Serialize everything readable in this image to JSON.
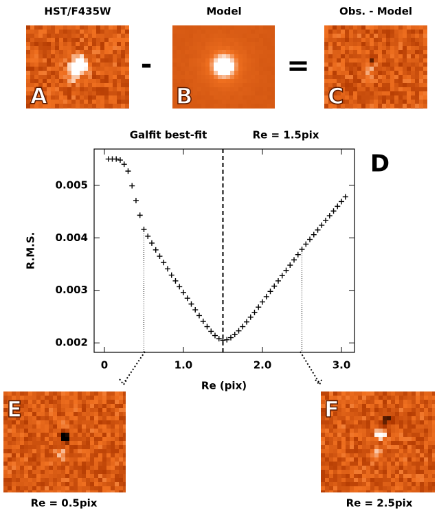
{
  "chart_data": {
    "type": "scatter",
    "title": "Galfit best-fit",
    "annotation": "Re = 1.5pix",
    "panel_letter": "D",
    "x_label": "Re (pix)",
    "y_label": "R.M.S.",
    "x": [
      0.05,
      0.1,
      0.15,
      0.2,
      0.25,
      0.3,
      0.35,
      0.4,
      0.45,
      0.5,
      0.55,
      0.6,
      0.65,
      0.7,
      0.75,
      0.8,
      0.85,
      0.9,
      0.95,
      1.0,
      1.05,
      1.1,
      1.15,
      1.2,
      1.25,
      1.3,
      1.35,
      1.4,
      1.45,
      1.5,
      1.55,
      1.6,
      1.65,
      1.7,
      1.75,
      1.8,
      1.85,
      1.9,
      1.95,
      2.0,
      2.05,
      2.1,
      2.15,
      2.2,
      2.25,
      2.3,
      2.35,
      2.4,
      2.45,
      2.5,
      2.55,
      2.6,
      2.65,
      2.7,
      2.75,
      2.8,
      2.85,
      2.9,
      2.95,
      3.0,
      3.05
    ],
    "values": [
      0.0055,
      0.0055,
      0.0055,
      0.00548,
      0.0054,
      0.00527,
      0.00499,
      0.00471,
      0.00443,
      0.00416,
      0.00403,
      0.0039,
      0.00377,
      0.00365,
      0.00353,
      0.00341,
      0.00329,
      0.00318,
      0.00307,
      0.00296,
      0.00285,
      0.00274,
      0.00263,
      0.00252,
      0.00241,
      0.00231,
      0.00222,
      0.00214,
      0.00208,
      0.00205,
      0.00206,
      0.0021,
      0.00216,
      0.00223,
      0.00231,
      0.0024,
      0.00249,
      0.00258,
      0.00268,
      0.00278,
      0.00288,
      0.00298,
      0.00308,
      0.00318,
      0.00328,
      0.00338,
      0.00348,
      0.00358,
      0.00368,
      0.00378,
      0.00388,
      0.00397,
      0.00406,
      0.00415,
      0.00424,
      0.00433,
      0.00442,
      0.00451,
      0.0046,
      0.00469,
      0.00478
    ],
    "color": "#000000",
    "best_fit_x": 1.5,
    "dotted_x": [
      0.5,
      2.5
    ],
    "xlim": [
      -0.13,
      3.165
    ],
    "ylim": [
      0.00182,
      0.00569
    ],
    "xticks": [
      0,
      {
        "value": 1,
        "label": "1.0"
      },
      {
        "value": 2,
        "label": "2.0"
      },
      {
        "value": 3,
        "label": "3.0"
      }
    ],
    "yticks": [
      0.002,
      0.003,
      0.004,
      0.005
    ]
  },
  "panels": [
    {
      "title": "HST/F435W",
      "letter": "A"
    },
    {
      "title": "Model",
      "letter": "B"
    },
    {
      "title": "Obs. - Model",
      "letter": "C"
    },
    {
      "letter": "E",
      "caption": "Re = 0.5pix"
    },
    {
      "letter": "F",
      "caption": "Re = 2.5pix"
    }
  ],
  "operators": [
    "-",
    "="
  ]
}
